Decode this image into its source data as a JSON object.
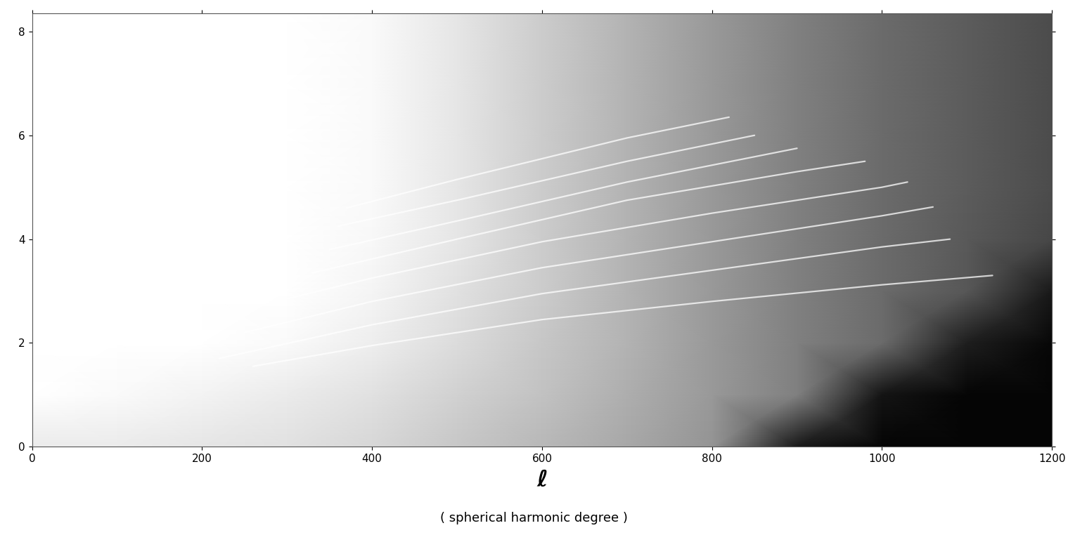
{
  "chart_data": {
    "type": "heatmap",
    "xlabel": "ℓ",
    "subtitle": "( spherical harmonic degree )",
    "xlim": [
      0,
      1200
    ],
    "xticks": [
      0,
      200,
      400,
      600,
      800,
      1000,
      1200
    ],
    "ylim": [
      0,
      8.35
    ],
    "yticks": [
      0,
      2,
      4,
      6,
      8
    ],
    "grid": false,
    "cells": {
      "x": [
        0,
        100,
        200,
        300,
        400,
        500,
        600,
        700,
        800,
        900,
        1000,
        1100,
        1200
      ],
      "y": [
        0,
        1,
        2,
        3,
        4,
        5,
        6,
        7,
        8.35
      ],
      "z": [
        [
          0.92,
          0.92,
          0.9,
          0.88,
          0.84,
          0.78,
          0.72,
          0.66,
          0.58,
          0.1,
          0.02,
          0.02,
          0.02
        ],
        [
          1.0,
          0.98,
          0.95,
          0.92,
          0.88,
          0.82,
          0.76,
          0.68,
          0.6,
          0.5,
          0.08,
          0.02,
          0.02
        ],
        [
          1.0,
          1.0,
          1.0,
          0.98,
          0.93,
          0.86,
          0.78,
          0.7,
          0.6,
          0.5,
          0.42,
          0.12,
          0.03
        ],
        [
          1.0,
          1.0,
          1.0,
          1.0,
          0.96,
          0.88,
          0.8,
          0.7,
          0.6,
          0.5,
          0.42,
          0.34,
          0.1
        ],
        [
          1.0,
          1.0,
          1.0,
          1.0,
          0.97,
          0.9,
          0.8,
          0.7,
          0.6,
          0.5,
          0.42,
          0.35,
          0.28
        ],
        [
          1.0,
          1.0,
          1.0,
          1.0,
          0.98,
          0.9,
          0.8,
          0.7,
          0.6,
          0.5,
          0.42,
          0.36,
          0.3
        ],
        [
          1.0,
          1.0,
          1.0,
          1.0,
          0.98,
          0.9,
          0.8,
          0.7,
          0.6,
          0.5,
          0.42,
          0.36,
          0.3
        ],
        [
          1.0,
          1.0,
          1.0,
          1.0,
          0.98,
          0.9,
          0.8,
          0.7,
          0.6,
          0.5,
          0.42,
          0.36,
          0.3
        ],
        [
          1.0,
          1.0,
          1.0,
          1.0,
          0.98,
          0.9,
          0.8,
          0.7,
          0.6,
          0.5,
          0.42,
          0.36,
          0.3
        ]
      ],
      "zlim": [
        0,
        1
      ],
      "color": "gray"
    },
    "series": [
      {
        "type": "line",
        "color": "#ffffff",
        "x": [
          260,
          400,
          600,
          800,
          1000,
          1130
        ],
        "values": [
          1.55,
          1.95,
          2.45,
          2.8,
          3.12,
          3.3
        ]
      },
      {
        "type": "line",
        "color": "#ffffff",
        "x": [
          220,
          400,
          600,
          800,
          1000,
          1080
        ],
        "values": [
          1.7,
          2.35,
          2.95,
          3.4,
          3.85,
          4.0
        ]
      },
      {
        "type": "line",
        "color": "#ffffff",
        "x": [
          250,
          400,
          600,
          800,
          1000,
          1060
        ],
        "values": [
          2.2,
          2.8,
          3.45,
          3.95,
          4.45,
          4.62
        ]
      },
      {
        "type": "line",
        "color": "#ffffff",
        "x": [
          300,
          400,
          600,
          800,
          1000,
          1030
        ],
        "values": [
          2.85,
          3.25,
          3.95,
          4.5,
          5.0,
          5.1
        ]
      },
      {
        "type": "line",
        "color": "#ffffff",
        "x": [
          330,
          500,
          700,
          900,
          980
        ],
        "values": [
          3.35,
          4.0,
          4.75,
          5.3,
          5.5
        ]
      },
      {
        "type": "line",
        "color": "#ffffff",
        "x": [
          350,
          500,
          700,
          900
        ],
        "values": [
          3.8,
          4.35,
          5.1,
          5.75
        ]
      },
      {
        "type": "line",
        "color": "#ffffff",
        "x": [
          360,
          500,
          700,
          850
        ],
        "values": [
          4.25,
          4.75,
          5.5,
          6.0
        ]
      },
      {
        "type": "line",
        "color": "#ffffff",
        "x": [
          370,
          500,
          700,
          820
        ],
        "values": [
          4.6,
          5.15,
          5.95,
          6.35
        ]
      }
    ]
  }
}
